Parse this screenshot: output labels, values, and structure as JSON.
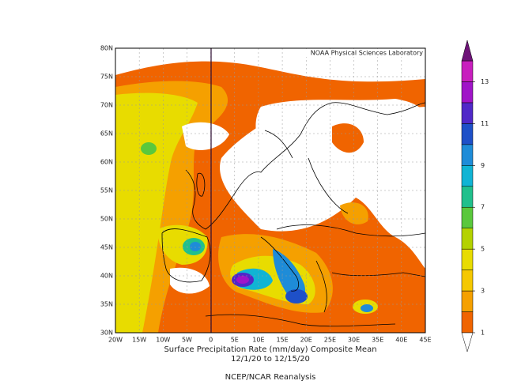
{
  "map": {
    "credit": "NOAA Physical Sciences Laboratory",
    "lat_labels": [
      "80N",
      "75N",
      "70N",
      "65N",
      "60N",
      "55N",
      "50N",
      "45N",
      "40N",
      "35N",
      "30N"
    ],
    "lon_labels": [
      "20W",
      "15W",
      "10W",
      "5W",
      "0",
      "5E",
      "10E",
      "15E",
      "20E",
      "25E",
      "30E",
      "35E",
      "40E",
      "45E"
    ]
  },
  "caption": {
    "line1": "Surface Precipitation Rate (mm/day) Composite Mean",
    "line2": "12/1/20  to 12/15/20",
    "line3": "NCEP/NCAR Reanalysis"
  },
  "colorbar": {
    "lim": [
      1,
      14
    ],
    "ticks": [
      1,
      3,
      5,
      7,
      9,
      11,
      13
    ],
    "colors": [
      "#f06400",
      "#f5a000",
      "#f5c800",
      "#e8dc00",
      "#b4d200",
      "#5ac83c",
      "#20c08c",
      "#10b4d4",
      "#1e8cd8",
      "#1e50c8",
      "#5028c8",
      "#a014c8",
      "#c81ebe"
    ],
    "under_color": "#ffffff",
    "over_color": "#6e1478"
  }
}
